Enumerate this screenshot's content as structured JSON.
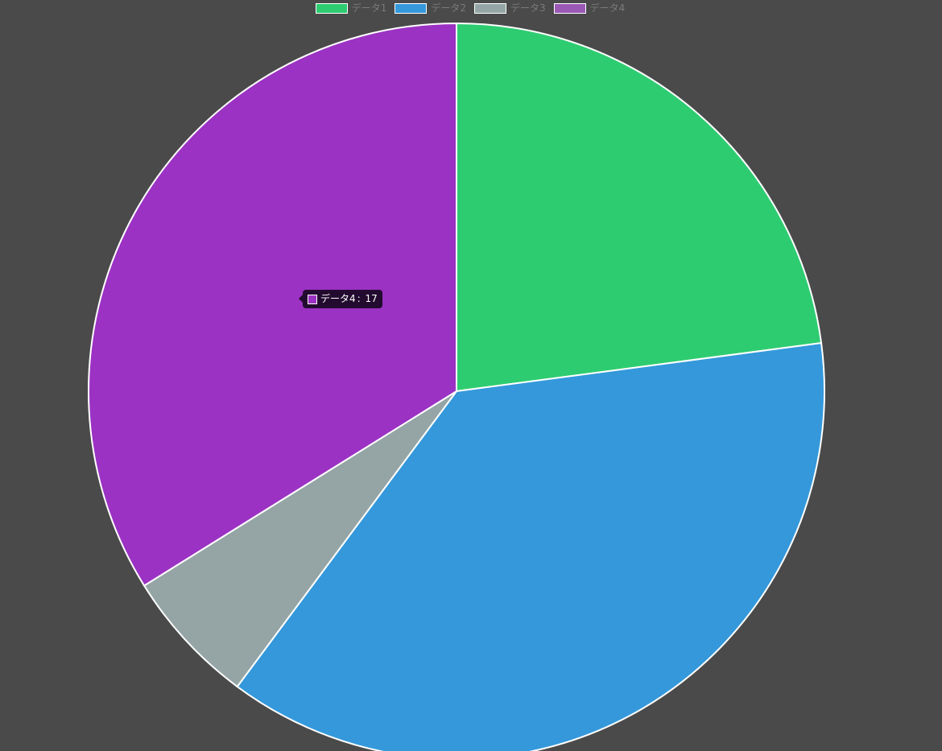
{
  "chart_data": {
    "type": "pie",
    "categories": [
      "データ1",
      "データ2",
      "データ3",
      "データ4"
    ],
    "values": [
      11.5,
      18.7,
      3.0,
      17
    ],
    "colors": [
      "#2ecc71",
      "#3498db",
      "#95a5a6",
      "#9b32c3"
    ],
    "legend_colors": [
      "#2ecc71",
      "#3498db",
      "#95a5a6",
      "#9b59b6"
    ],
    "legend_position": "top",
    "border_color": "#ffffff",
    "tooltip": {
      "label": "データ4",
      "value": "17",
      "color": "#9b32c3"
    }
  }
}
